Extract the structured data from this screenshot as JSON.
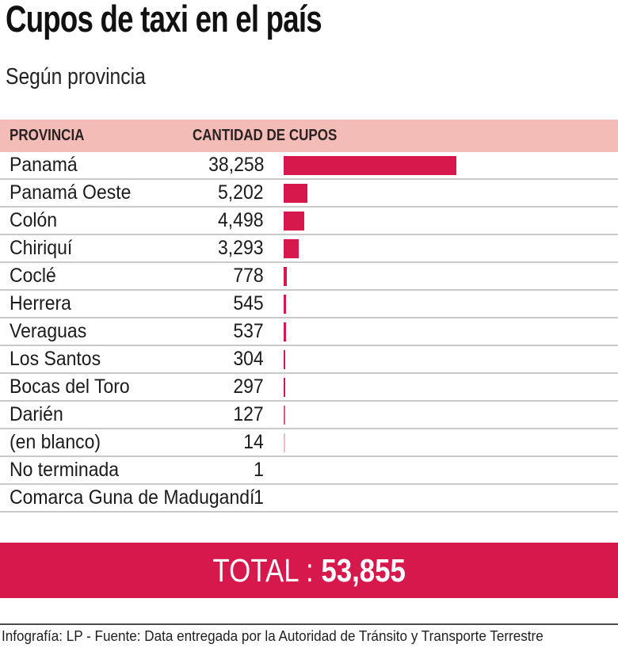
{
  "title": "Cupos de taxi en el país",
  "subtitle": "Según provincia",
  "table": {
    "col_province": "PROVINCIA",
    "col_count": "CANTIDAD DE CUPOS"
  },
  "total": {
    "label": "TOTAL :",
    "value": "53,855"
  },
  "footer": "Infografía: LP - Fuente: Data entregada por la Autoridad de Tránsito y Transporte Terrestre",
  "colors": {
    "accent": "#d6184c",
    "header_bg": "#f3bcb7",
    "separator": "#c9c9c9"
  },
  "chart_data": {
    "type": "bar",
    "orientation": "horizontal",
    "title": "Cupos de taxi en el país",
    "subtitle": "Según provincia",
    "xlabel": "CANTIDAD DE CUPOS",
    "ylabel": "PROVINCIA",
    "categories": [
      "Panamá",
      "Panamá Oeste",
      "Colón",
      "Chiriquí",
      "Coclé",
      "Herrera",
      "Veraguas",
      "Los Santos",
      "Bocas del Toro",
      "Darién",
      "(en blanco)",
      "No terminada",
      "Comarca Guna de Madugandí"
    ],
    "values": [
      38258,
      5202,
      4498,
      3293,
      778,
      545,
      537,
      304,
      297,
      127,
      14,
      1,
      1
    ],
    "value_labels": [
      "38,258",
      "5,202",
      "4,498",
      "3,293",
      "778",
      "545",
      "537",
      "304",
      "297",
      "127",
      "14",
      "1",
      "1"
    ],
    "total": 53855,
    "xlim": [
      0,
      38258
    ],
    "grid": false,
    "legend": false
  }
}
